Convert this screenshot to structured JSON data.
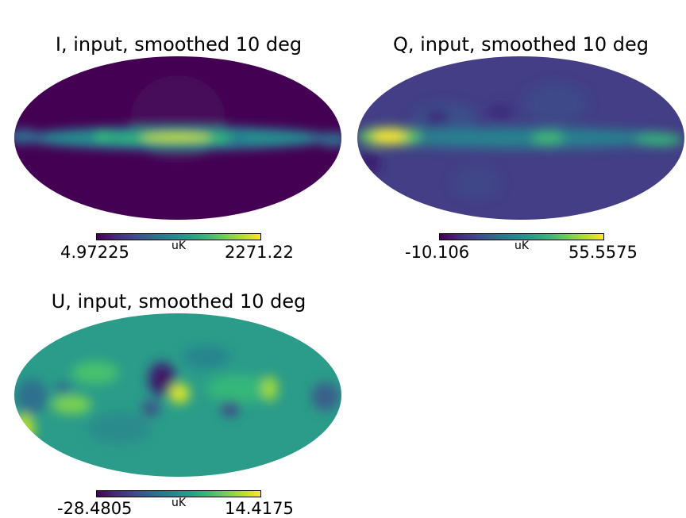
{
  "chart_data": [
    {
      "type": "heatmap",
      "title": "I, input, smoothed 10 deg",
      "projection": "mollweide",
      "colormap": "viridis",
      "colorbar": {
        "min": "4.97225",
        "max": "2271.22",
        "unit": "uK"
      }
    },
    {
      "type": "heatmap",
      "title": "Q, input, smoothed 10 deg",
      "projection": "mollweide",
      "colormap": "viridis",
      "colorbar": {
        "min": "-10.106",
        "max": "55.5575",
        "unit": "uK"
      }
    },
    {
      "type": "heatmap",
      "title": "U, input, smoothed 10 deg",
      "projection": "mollweide",
      "colormap": "viridis",
      "colorbar": {
        "min": "-28.4805",
        "max": "14.4175",
        "unit": "uK"
      }
    }
  ],
  "colors": {
    "viridis": [
      "#440154",
      "#482878",
      "#3e4989",
      "#31688e",
      "#26828e",
      "#1f9e89",
      "#35b779",
      "#6ece58",
      "#b5de2b",
      "#fde725"
    ]
  }
}
